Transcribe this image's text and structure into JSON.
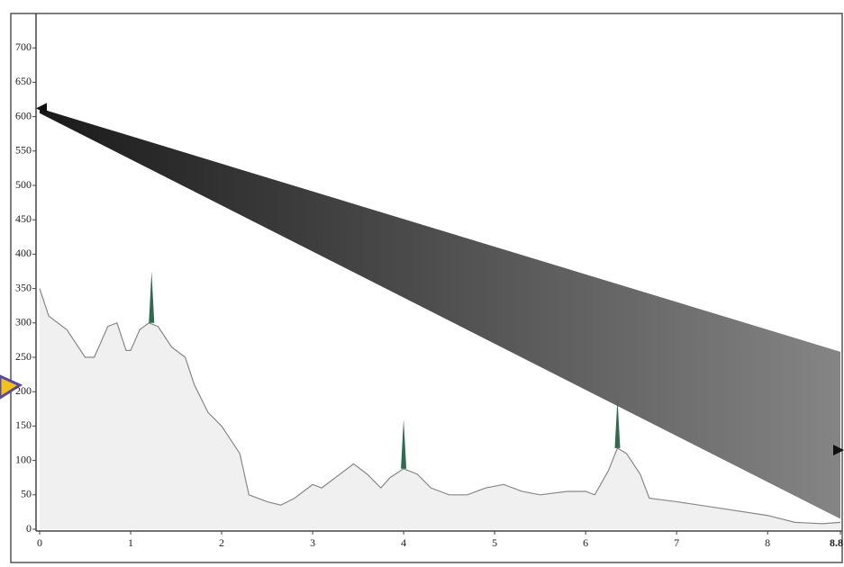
{
  "chart_data": {
    "type": "terrain-profile",
    "x": [
      0,
      0.1,
      0.3,
      0.5,
      0.6,
      0.75,
      0.85,
      0.95,
      1.0,
      1.1,
      1.2,
      1.3,
      1.45,
      1.6,
      1.7,
      1.85,
      2.0,
      2.2,
      2.3,
      2.5,
      2.65,
      2.8,
      3.0,
      3.1,
      3.2,
      3.3,
      3.45,
      3.6,
      3.75,
      3.85,
      4.0,
      4.15,
      4.3,
      4.5,
      4.7,
      4.9,
      5.1,
      5.3,
      5.5,
      5.8,
      6.0,
      6.1,
      6.25,
      6.35,
      6.45,
      6.6,
      6.7,
      7.0,
      7.5,
      8.0,
      8.3,
      8.6,
      8.8
    ],
    "values": [
      350,
      310,
      290,
      250,
      250,
      295,
      300,
      260,
      260,
      290,
      300,
      295,
      265,
      250,
      210,
      170,
      150,
      110,
      50,
      40,
      35,
      45,
      65,
      60,
      70,
      80,
      95,
      80,
      60,
      75,
      88,
      80,
      60,
      50,
      50,
      60,
      65,
      55,
      50,
      55,
      55,
      50,
      85,
      118,
      110,
      80,
      45,
      40,
      30,
      20,
      10,
      8,
      10
    ],
    "color": "#f0f0f0",
    "masts": {
      "x": [
        1.23,
        4.0,
        6.35
      ],
      "base": [
        300,
        88,
        118
      ],
      "top": [
        375,
        160,
        190
      ],
      "color": "#2f6b4f"
    },
    "beam": {
      "x": [
        0,
        8.8
      ],
      "upper": [
        612,
        258
      ],
      "lower": [
        605,
        15
      ],
      "color": "#000000",
      "end_color": "#777777"
    },
    "markers": {
      "x": [
        0,
        8.8
      ],
      "y": [
        612,
        115
      ]
    },
    "xlim": [
      0,
      8.8
    ],
    "ylim": [
      0,
      750
    ],
    "xticks": [
      0,
      1,
      2,
      3,
      4,
      5,
      6,
      7,
      8,
      8.8
    ],
    "yticks": [
      0,
      50,
      100,
      150,
      200,
      250,
      300,
      350,
      400,
      450,
      500,
      550,
      600,
      650,
      700
    ]
  }
}
